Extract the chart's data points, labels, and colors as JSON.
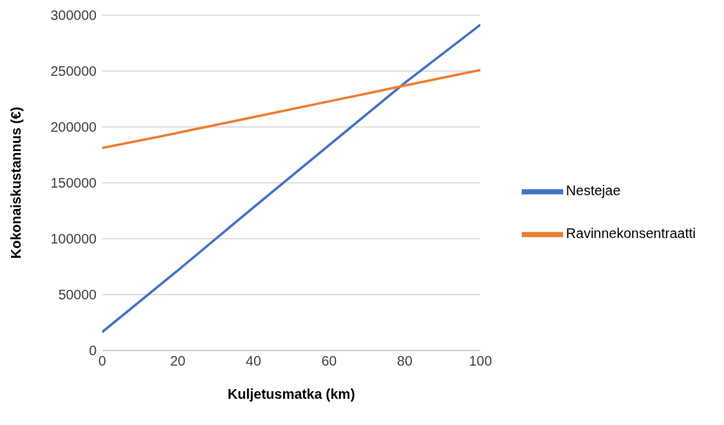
{
  "chart_data": {
    "type": "line",
    "xlabel": "Kuljetusmatka (km)",
    "ylabel": "Kokonaiskustannus (€)",
    "x": [
      0,
      20,
      40,
      60,
      80,
      100
    ],
    "series": [
      {
        "name": "Nestejae",
        "color": "#4472c4",
        "values": [
          16500,
          71600,
          128000,
          183700,
          239400,
          291500
        ]
      },
      {
        "name": "Ravinnekonsentraatti",
        "color": "#ed7d31",
        "values": [
          181200,
          194700,
          208800,
          222900,
          237000,
          251000
        ]
      }
    ],
    "xlim": [
      0,
      100
    ],
    "xticks": [
      0,
      20,
      40,
      60,
      80,
      100
    ],
    "ylim": [
      0,
      300000
    ],
    "yticks": [
      0,
      50000,
      100000,
      150000,
      200000,
      250000,
      300000
    ],
    "grid": "y",
    "legend": "right",
    "marker": "none",
    "line_style": "solid"
  }
}
